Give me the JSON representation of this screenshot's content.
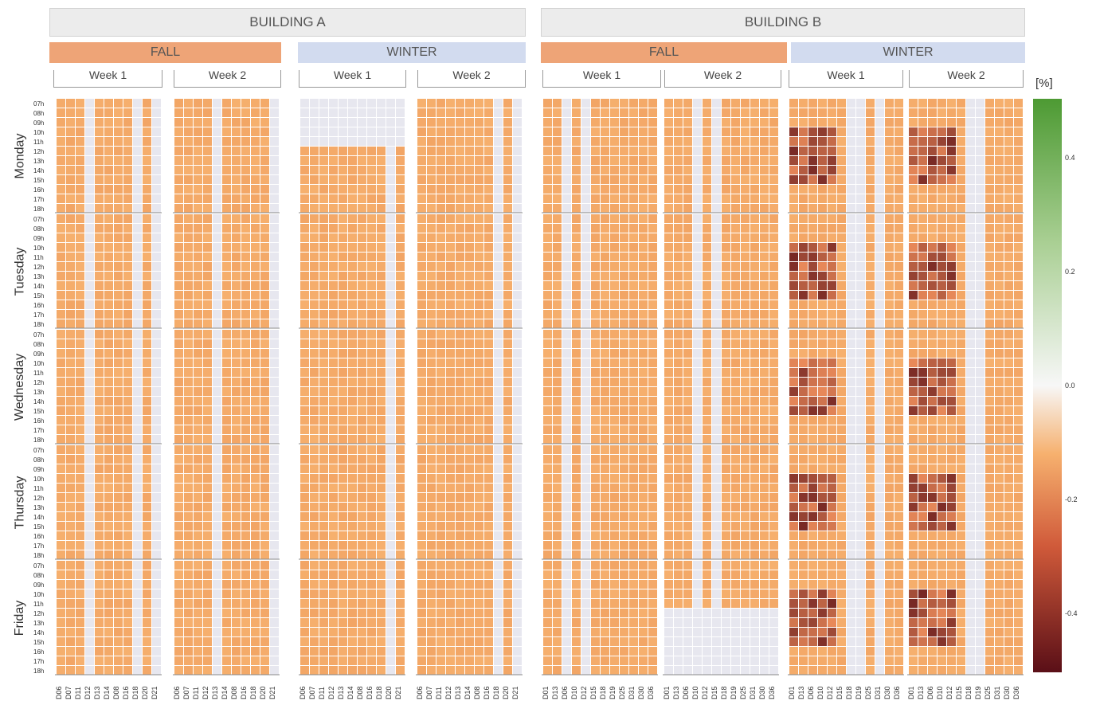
{
  "buildings": [
    "BUILDING A",
    "BUILDING B"
  ],
  "seasons": [
    "FALL",
    "WINTER",
    "FALL",
    "WINTER"
  ],
  "weeks": [
    "Week 1",
    "Week 2"
  ],
  "days": [
    "Monday",
    "Tuesday",
    "Wednesday",
    "Thursday",
    "Friday"
  ],
  "hours": [
    "07h",
    "08h",
    "09h",
    "10h",
    "11h",
    "12h",
    "13h",
    "14h",
    "15h",
    "16h",
    "17h",
    "18h"
  ],
  "devices_a": [
    "D06",
    "D07",
    "D11",
    "D12",
    "D13",
    "D14",
    "D08",
    "D16",
    "D18",
    "D20",
    "D21"
  ],
  "devices_b": [
    "D01",
    "D13",
    "D06",
    "D10",
    "D12",
    "D15",
    "D18",
    "D19",
    "D25",
    "D31",
    "D30",
    "D36"
  ],
  "colorbar": {
    "unit": "[%]",
    "ticks": [
      "0.4",
      "0.2",
      "0.0",
      "-0.2",
      "-0.4"
    ],
    "colors": {
      "high": "#4d9a33",
      "zero": "#f7f7f7",
      "low": "#5a0f17",
      "base": "#f6b06e",
      "missing": "#e7e7ef"
    }
  },
  "chart_data": {
    "type": "heatmap",
    "title": "",
    "value_unit": "[%]",
    "color_range": [
      -0.5,
      0.5
    ],
    "rows": "day x hour (07h-18h)",
    "columns": "building / season / week / device",
    "description_of_values": "Mostly uniform around -0.1 (light orange); grey cells = missing; darker red cells down to about -0.45 and a few green cells up to about 0.45",
    "panels": [
      {
        "building": "BUILDING A",
        "season": "FALL",
        "week": "Week 1",
        "devices": "devices_a"
      },
      {
        "building": "BUILDING A",
        "season": "FALL",
        "week": "Week 2",
        "devices": "devices_a"
      },
      {
        "building": "BUILDING A",
        "season": "WINTER",
        "week": "Week 1",
        "devices": "devices_a"
      },
      {
        "building": "BUILDING A",
        "season": "WINTER",
        "week": "Week 2",
        "devices": "devices_a"
      },
      {
        "building": "BUILDING B",
        "season": "FALL",
        "week": "Week 1",
        "devices": "devices_b"
      },
      {
        "building": "BUILDING B",
        "season": "FALL",
        "week": "Week 2",
        "devices": "devices_b"
      },
      {
        "building": "BUILDING B",
        "season": "WINTER",
        "week": "Week 1",
        "devices": "devices_b"
      },
      {
        "building": "BUILDING B",
        "season": "WINTER",
        "week": "Week 2",
        "devices": "devices_b"
      }
    ]
  }
}
